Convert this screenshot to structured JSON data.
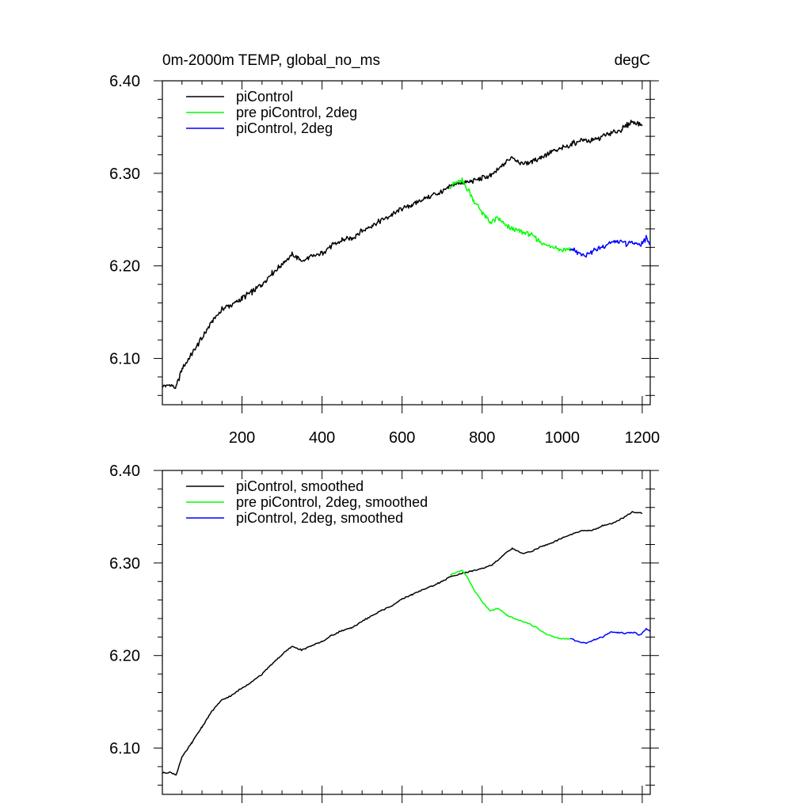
{
  "chart_data": [
    {
      "type": "line",
      "title_left": "0m-2000m TEMP, global_no_ms",
      "title_right": "degC",
      "xlim": [
        1,
        1220
      ],
      "ylim": [
        6.05,
        6.4
      ],
      "x_ticks": [
        200,
        400,
        600,
        800,
        1000,
        1200
      ],
      "x_tick_labels": [
        "200",
        "400",
        "600",
        "800",
        "1000",
        "1200"
      ],
      "y_ticks": [
        6.1,
        6.2,
        6.3,
        6.4
      ],
      "y_tick_labels": [
        "6.10",
        "6.20",
        "6.30",
        "6.40"
      ],
      "legend": [
        "piControl",
        "pre piControl, 2deg",
        "piControl, 2deg"
      ],
      "colors": [
        "#000000",
        "#00ff00",
        "#0000ff"
      ],
      "series": [
        {
          "name": "piControl",
          "color": "#000000",
          "x": [
            1,
            20,
            35,
            50,
            75,
            100,
            125,
            150,
            175,
            200,
            225,
            250,
            275,
            300,
            325,
            350,
            375,
            400,
            425,
            450,
            475,
            500,
            525,
            550,
            575,
            600,
            625,
            650,
            675,
            700,
            725,
            750,
            775,
            800,
            825,
            850,
            875,
            900,
            925,
            950,
            975,
            1000,
            1025,
            1050,
            1075,
            1100,
            1125,
            1150,
            1175,
            1200
          ],
          "values": [
            6.07,
            6.071,
            6.069,
            6.088,
            6.105,
            6.122,
            6.14,
            6.153,
            6.158,
            6.165,
            6.172,
            6.18,
            6.192,
            6.202,
            6.212,
            6.205,
            6.21,
            6.214,
            6.222,
            6.228,
            6.23,
            6.238,
            6.244,
            6.25,
            6.255,
            6.262,
            6.266,
            6.272,
            6.276,
            6.28,
            6.287,
            6.29,
            6.291,
            6.295,
            6.298,
            6.308,
            6.318,
            6.31,
            6.313,
            6.318,
            6.323,
            6.327,
            6.332,
            6.336,
            6.335,
            6.34,
            6.343,
            6.348,
            6.356,
            6.352
          ]
        },
        {
          "name": "pre piControl, 2deg",
          "color": "#00ff00",
          "x": [
            720,
            735,
            750,
            765,
            780,
            800,
            820,
            840,
            860,
            880,
            900,
            920,
            940,
            960,
            980,
            1000,
            1020
          ],
          "values": [
            6.286,
            6.29,
            6.292,
            6.282,
            6.27,
            6.258,
            6.247,
            6.251,
            6.243,
            6.24,
            6.236,
            6.234,
            6.228,
            6.222,
            6.22,
            6.217,
            6.218
          ]
        },
        {
          "name": "piControl, 2deg",
          "color": "#0000ff",
          "x": [
            1020,
            1040,
            1060,
            1080,
            1100,
            1120,
            1140,
            1160,
            1180,
            1195,
            1210,
            1220
          ],
          "values": [
            6.218,
            6.215,
            6.212,
            6.217,
            6.22,
            6.225,
            6.226,
            6.224,
            6.225,
            6.222,
            6.23,
            6.225
          ]
        }
      ]
    },
    {
      "type": "line",
      "xlim": [
        1,
        1220
      ],
      "ylim": [
        6.05,
        6.4
      ],
      "x_ticks": [
        200,
        400,
        600,
        800,
        1000,
        1200
      ],
      "y_ticks": [
        6.1,
        6.2,
        6.3,
        6.4
      ],
      "y_tick_labels": [
        "6.10",
        "6.20",
        "6.30",
        "6.40"
      ],
      "legend": [
        "piControl, smoothed",
        "pre piControl, 2deg, smoothed",
        "piControl, 2deg, smoothed"
      ],
      "colors": [
        "#000000",
        "#00ff00",
        "#0000ff"
      ],
      "series": [
        {
          "name": "piControl, smoothed",
          "color": "#000000",
          "x": [
            1,
            20,
            35,
            50,
            75,
            100,
            125,
            150,
            175,
            200,
            225,
            250,
            275,
            300,
            325,
            350,
            375,
            400,
            425,
            450,
            475,
            500,
            525,
            550,
            575,
            600,
            625,
            650,
            675,
            700,
            725,
            750,
            775,
            800,
            825,
            850,
            875,
            900,
            925,
            950,
            975,
            1000,
            1025,
            1050,
            1075,
            1100,
            1125,
            1150,
            1175,
            1200
          ],
          "values": [
            6.073,
            6.074,
            6.071,
            6.09,
            6.106,
            6.123,
            6.14,
            6.152,
            6.157,
            6.165,
            6.172,
            6.18,
            6.191,
            6.201,
            6.21,
            6.206,
            6.211,
            6.215,
            6.222,
            6.227,
            6.23,
            6.237,
            6.243,
            6.249,
            6.254,
            6.261,
            6.266,
            6.271,
            6.275,
            6.28,
            6.286,
            6.289,
            6.291,
            6.294,
            6.298,
            6.307,
            6.316,
            6.31,
            6.313,
            6.318,
            6.322,
            6.327,
            6.331,
            6.335,
            6.335,
            6.34,
            6.343,
            6.348,
            6.355,
            6.354
          ]
        },
        {
          "name": "pre piControl, 2deg, smoothed",
          "color": "#00ff00",
          "x": [
            720,
            735,
            750,
            765,
            780,
            800,
            820,
            840,
            860,
            880,
            900,
            920,
            940,
            960,
            980,
            1000,
            1020
          ],
          "values": [
            6.287,
            6.29,
            6.292,
            6.283,
            6.271,
            6.258,
            6.248,
            6.251,
            6.244,
            6.24,
            6.237,
            6.234,
            6.229,
            6.223,
            6.22,
            6.218,
            6.218
          ]
        },
        {
          "name": "piControl, 2deg, smoothed",
          "color": "#0000ff",
          "x": [
            1020,
            1040,
            1060,
            1080,
            1100,
            1120,
            1140,
            1160,
            1180,
            1195,
            1210,
            1220
          ],
          "values": [
            6.218,
            6.215,
            6.213,
            6.217,
            6.22,
            6.225,
            6.225,
            6.224,
            6.225,
            6.222,
            6.229,
            6.226
          ]
        }
      ]
    }
  ]
}
